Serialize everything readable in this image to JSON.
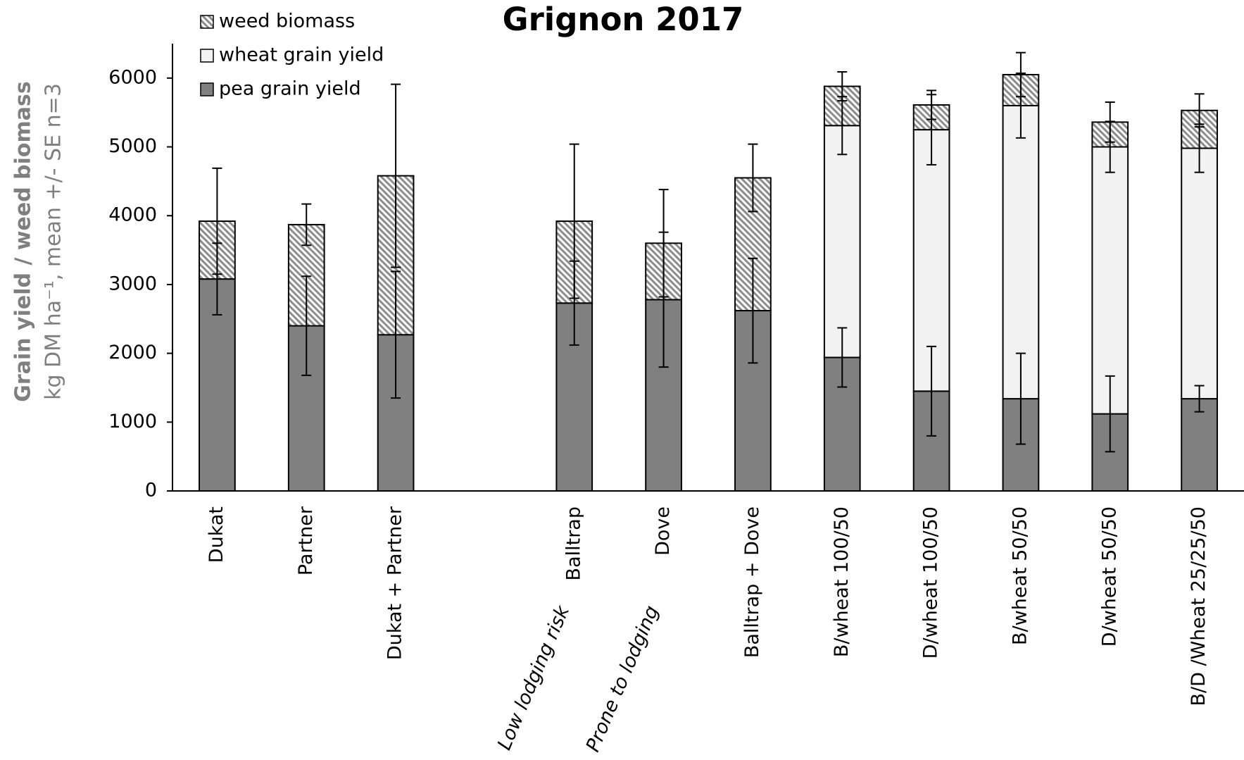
{
  "chart_data": {
    "type": "stacked-bar",
    "title": "Grignon 2017",
    "y_label": "Grain yield / weed biomass",
    "y_label_sub": "kg DM ha⁻¹, mean +/- SE n=3",
    "categories": [
      "Dukat",
      "Partner",
      "Dukat + Partner",
      null,
      "Balltrap",
      "Dove",
      "Balltrap + Dove",
      "B/wheat 100/50",
      "D/wheat 100/50",
      "B/wheat 50/50",
      "D/wheat 50/50",
      "B/D /Wheat 25/25/50"
    ],
    "annotations": [
      {
        "text": "Low lodging risk",
        "category": 4
      },
      {
        "text": "Prone to lodging",
        "category": 5
      }
    ],
    "series": [
      {
        "name": "pea grain yield",
        "color": "#808080",
        "hatch": false,
        "values": [
          3080,
          2400,
          2270,
          null,
          2730,
          2780,
          2620,
          1940,
          1450,
          1340,
          1120,
          1340
        ],
        "errors": [
          520,
          720,
          920,
          null,
          610,
          980,
          760,
          430,
          650,
          660,
          550,
          190
        ]
      },
      {
        "name": "wheat grain yield",
        "color": "#f2f2f2",
        "hatch": false,
        "values": [
          null,
          null,
          null,
          null,
          null,
          null,
          null,
          3370,
          3800,
          4260,
          3880,
          3640
        ],
        "errors": [
          null,
          null,
          null,
          null,
          null,
          null,
          null,
          420,
          510,
          470,
          370,
          350
        ]
      },
      {
        "name": "weed biomass",
        "color": "#8c8c8c",
        "hatch": true,
        "values": [
          840,
          1470,
          2310,
          null,
          1190,
          820,
          1930,
          570,
          360,
          450,
          360,
          550
        ],
        "errors": [
          770,
          300,
          1330,
          null,
          1120,
          780,
          490,
          210,
          210,
          320,
          290,
          240
        ]
      }
    ],
    "ylim": [
      0,
      6500
    ],
    "yticks": [
      0,
      1000,
      2000,
      3000,
      4000,
      5000,
      6000
    ],
    "grid": false,
    "legend": "upper left"
  }
}
